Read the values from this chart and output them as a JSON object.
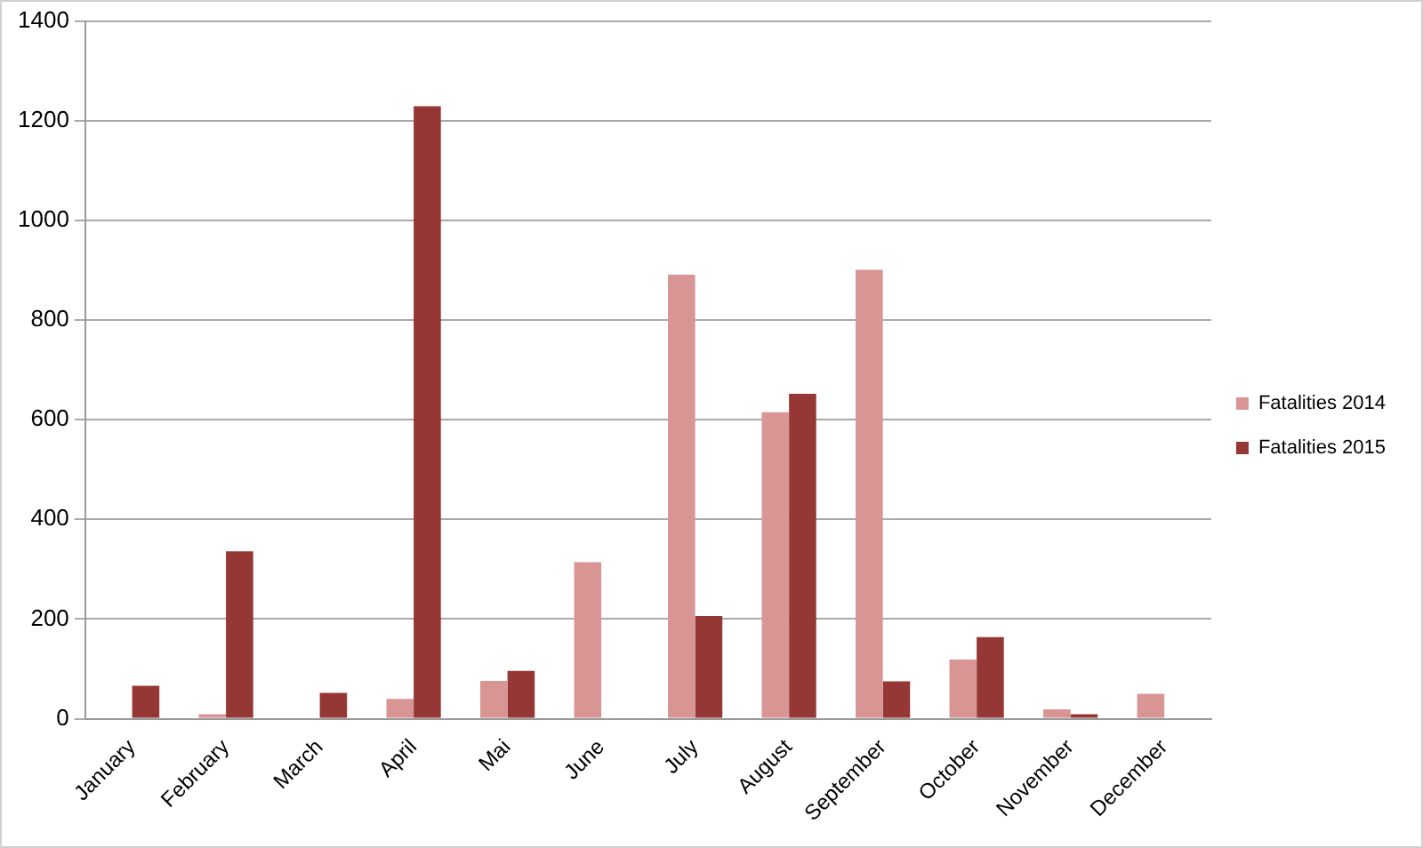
{
  "chart_data": {
    "type": "bar",
    "categories": [
      "January",
      "February",
      "March",
      "April",
      "Mai",
      "June",
      "July",
      "August",
      "September",
      "October",
      "November",
      "December"
    ],
    "series": [
      {
        "name": "Fatalities 2014",
        "color": "#d99594",
        "values": [
          null,
          9,
          null,
          40,
          76,
          314,
          891,
          615,
          901,
          119,
          19,
          50
        ]
      },
      {
        "name": "Fatalities 2015",
        "color": "#953735",
        "values": [
          66,
          336,
          52,
          1229,
          96,
          null,
          206,
          652,
          75,
          164,
          9,
          null
        ]
      }
    ],
    "ylim": [
      0,
      1400
    ],
    "yticks": [
      0,
      200,
      400,
      600,
      800,
      1000,
      1200,
      1400
    ],
    "grid": "y",
    "legend": "right"
  }
}
